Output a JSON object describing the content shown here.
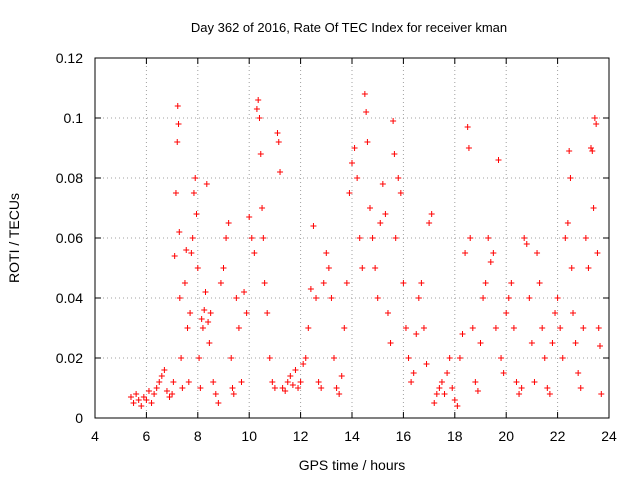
{
  "chart_data": {
    "type": "scatter",
    "title": "Day 362 of 2016, Rate Of TEC Index for receiver kman",
    "xlabel": "GPS time / hours",
    "ylabel": "ROTI / TECUs",
    "xlim": [
      4,
      24
    ],
    "ylim": [
      0,
      0.12
    ],
    "xticks": [
      "4",
      "6",
      "8",
      "10",
      "12",
      "14",
      "16",
      "18",
      "20",
      "22",
      "24"
    ],
    "yticks": [
      "0",
      "0.02",
      "0.04",
      "0.06",
      "0.08",
      "0.1",
      "0.12"
    ],
    "grid": true,
    "marker": "+",
    "color": "#ff0000",
    "series": [
      {
        "points": [
          [
            5.4,
            0.007
          ],
          [
            5.5,
            0.005
          ],
          [
            5.6,
            0.008
          ],
          [
            5.7,
            0.006
          ],
          [
            5.8,
            0.004
          ],
          [
            5.9,
            0.007
          ],
          [
            6.0,
            0.006
          ],
          [
            6.1,
            0.009
          ],
          [
            6.2,
            0.005
          ],
          [
            6.3,
            0.008
          ],
          [
            6.4,
            0.01
          ],
          [
            6.5,
            0.012
          ],
          [
            6.6,
            0.014
          ],
          [
            6.7,
            0.016
          ],
          [
            6.8,
            0.009
          ],
          [
            6.9,
            0.007
          ],
          [
            7.0,
            0.008
          ],
          [
            7.05,
            0.012
          ],
          [
            7.1,
            0.054
          ],
          [
            7.15,
            0.075
          ],
          [
            7.2,
            0.092
          ],
          [
            7.22,
            0.104
          ],
          [
            7.25,
            0.098
          ],
          [
            7.28,
            0.062
          ],
          [
            7.3,
            0.04
          ],
          [
            7.35,
            0.02
          ],
          [
            7.4,
            0.01
          ],
          [
            7.5,
            0.045
          ],
          [
            7.55,
            0.056
          ],
          [
            7.6,
            0.03
          ],
          [
            7.65,
            0.012
          ],
          [
            7.7,
            0.035
          ],
          [
            7.75,
            0.055
          ],
          [
            7.8,
            0.06
          ],
          [
            7.85,
            0.075
          ],
          [
            7.9,
            0.08
          ],
          [
            7.95,
            0.068
          ],
          [
            8.0,
            0.05
          ],
          [
            8.05,
            0.02
          ],
          [
            8.1,
            0.01
          ],
          [
            8.15,
            0.033
          ],
          [
            8.2,
            0.03
          ],
          [
            8.25,
            0.036
          ],
          [
            8.3,
            0.042
          ],
          [
            8.35,
            0.078
          ],
          [
            8.4,
            0.032
          ],
          [
            8.45,
            0.025
          ],
          [
            8.5,
            0.035
          ],
          [
            8.6,
            0.012
          ],
          [
            8.7,
            0.008
          ],
          [
            8.8,
            0.005
          ],
          [
            8.9,
            0.045
          ],
          [
            9.0,
            0.05
          ],
          [
            9.1,
            0.06
          ],
          [
            9.2,
            0.065
          ],
          [
            9.3,
            0.02
          ],
          [
            9.35,
            0.01
          ],
          [
            9.4,
            0.008
          ],
          [
            9.5,
            0.04
          ],
          [
            9.6,
            0.03
          ],
          [
            9.7,
            0.012
          ],
          [
            9.8,
            0.042
          ],
          [
            9.9,
            0.035
          ],
          [
            10.0,
            0.067
          ],
          [
            10.1,
            0.06
          ],
          [
            10.2,
            0.055
          ],
          [
            10.3,
            0.103
          ],
          [
            10.35,
            0.106
          ],
          [
            10.4,
            0.1
          ],
          [
            10.45,
            0.088
          ],
          [
            10.5,
            0.07
          ],
          [
            10.55,
            0.06
          ],
          [
            10.6,
            0.045
          ],
          [
            10.7,
            0.035
          ],
          [
            10.8,
            0.02
          ],
          [
            10.9,
            0.012
          ],
          [
            11.0,
            0.01
          ],
          [
            11.1,
            0.095
          ],
          [
            11.15,
            0.092
          ],
          [
            11.2,
            0.082
          ],
          [
            11.3,
            0.01
          ],
          [
            11.4,
            0.009
          ],
          [
            11.5,
            0.012
          ],
          [
            11.6,
            0.014
          ],
          [
            11.7,
            0.011
          ],
          [
            11.8,
            0.016
          ],
          [
            11.9,
            0.01
          ],
          [
            12.0,
            0.012
          ],
          [
            12.1,
            0.018
          ],
          [
            12.2,
            0.02
          ],
          [
            12.3,
            0.03
          ],
          [
            12.4,
            0.043
          ],
          [
            12.5,
            0.064
          ],
          [
            12.6,
            0.04
          ],
          [
            12.7,
            0.012
          ],
          [
            12.8,
            0.01
          ],
          [
            12.9,
            0.045
          ],
          [
            13.0,
            0.055
          ],
          [
            13.1,
            0.05
          ],
          [
            13.2,
            0.04
          ],
          [
            13.3,
            0.02
          ],
          [
            13.4,
            0.01
          ],
          [
            13.5,
            0.008
          ],
          [
            13.6,
            0.014
          ],
          [
            13.7,
            0.03
          ],
          [
            13.8,
            0.045
          ],
          [
            13.9,
            0.075
          ],
          [
            14.0,
            0.085
          ],
          [
            14.1,
            0.09
          ],
          [
            14.2,
            0.08
          ],
          [
            14.3,
            0.06
          ],
          [
            14.4,
            0.05
          ],
          [
            14.5,
            0.108
          ],
          [
            14.55,
            0.102
          ],
          [
            14.6,
            0.092
          ],
          [
            14.7,
            0.07
          ],
          [
            14.8,
            0.06
          ],
          [
            14.9,
            0.05
          ],
          [
            15.0,
            0.04
          ],
          [
            15.1,
            0.065
          ],
          [
            15.2,
            0.078
          ],
          [
            15.3,
            0.068
          ],
          [
            15.4,
            0.035
          ],
          [
            15.5,
            0.025
          ],
          [
            15.6,
            0.099
          ],
          [
            15.65,
            0.088
          ],
          [
            15.7,
            0.06
          ],
          [
            15.8,
            0.08
          ],
          [
            15.9,
            0.075
          ],
          [
            16.0,
            0.045
          ],
          [
            16.1,
            0.03
          ],
          [
            16.2,
            0.02
          ],
          [
            16.3,
            0.012
          ],
          [
            16.4,
            0.015
          ],
          [
            16.5,
            0.028
          ],
          [
            16.6,
            0.04
          ],
          [
            16.7,
            0.045
          ],
          [
            16.8,
            0.03
          ],
          [
            16.9,
            0.018
          ],
          [
            17.0,
            0.065
          ],
          [
            17.1,
            0.068
          ],
          [
            17.2,
            0.005
          ],
          [
            17.3,
            0.008
          ],
          [
            17.4,
            0.01
          ],
          [
            17.5,
            0.012
          ],
          [
            17.6,
            0.008
          ],
          [
            17.7,
            0.015
          ],
          [
            17.8,
            0.02
          ],
          [
            17.9,
            0.01
          ],
          [
            18.0,
            0.006
          ],
          [
            18.1,
            0.004
          ],
          [
            18.2,
            0.02
          ],
          [
            18.3,
            0.028
          ],
          [
            18.4,
            0.055
          ],
          [
            18.5,
            0.097
          ],
          [
            18.55,
            0.09
          ],
          [
            18.6,
            0.06
          ],
          [
            18.7,
            0.03
          ],
          [
            18.8,
            0.012
          ],
          [
            18.9,
            0.009
          ],
          [
            19.0,
            0.025
          ],
          [
            19.1,
            0.04
          ],
          [
            19.2,
            0.045
          ],
          [
            19.3,
            0.06
          ],
          [
            19.4,
            0.052
          ],
          [
            19.5,
            0.055
          ],
          [
            19.6,
            0.03
          ],
          [
            19.7,
            0.086
          ],
          [
            19.8,
            0.02
          ],
          [
            19.9,
            0.015
          ],
          [
            20.0,
            0.035
          ],
          [
            20.1,
            0.04
          ],
          [
            20.2,
            0.045
          ],
          [
            20.3,
            0.03
          ],
          [
            20.4,
            0.012
          ],
          [
            20.5,
            0.008
          ],
          [
            20.6,
            0.01
          ],
          [
            20.7,
            0.06
          ],
          [
            20.8,
            0.058
          ],
          [
            20.9,
            0.04
          ],
          [
            21.0,
            0.025
          ],
          [
            21.1,
            0.012
          ],
          [
            21.2,
            0.055
          ],
          [
            21.3,
            0.045
          ],
          [
            21.4,
            0.03
          ],
          [
            21.5,
            0.02
          ],
          [
            21.6,
            0.01
          ],
          [
            21.7,
            0.008
          ],
          [
            21.8,
            0.025
          ],
          [
            21.9,
            0.035
          ],
          [
            22.0,
            0.04
          ],
          [
            22.1,
            0.03
          ],
          [
            22.2,
            0.02
          ],
          [
            22.3,
            0.06
          ],
          [
            22.4,
            0.065
          ],
          [
            22.45,
            0.089
          ],
          [
            22.5,
            0.08
          ],
          [
            22.55,
            0.05
          ],
          [
            22.6,
            0.035
          ],
          [
            22.7,
            0.025
          ],
          [
            22.8,
            0.015
          ],
          [
            22.9,
            0.01
          ],
          [
            23.0,
            0.03
          ],
          [
            23.1,
            0.06
          ],
          [
            23.2,
            0.05
          ],
          [
            23.3,
            0.09
          ],
          [
            23.35,
            0.089
          ],
          [
            23.4,
            0.07
          ],
          [
            23.45,
            0.1
          ],
          [
            23.5,
            0.098
          ],
          [
            23.55,
            0.055
          ],
          [
            23.6,
            0.03
          ],
          [
            23.65,
            0.024
          ],
          [
            23.7,
            0.008
          ]
        ]
      }
    ]
  }
}
